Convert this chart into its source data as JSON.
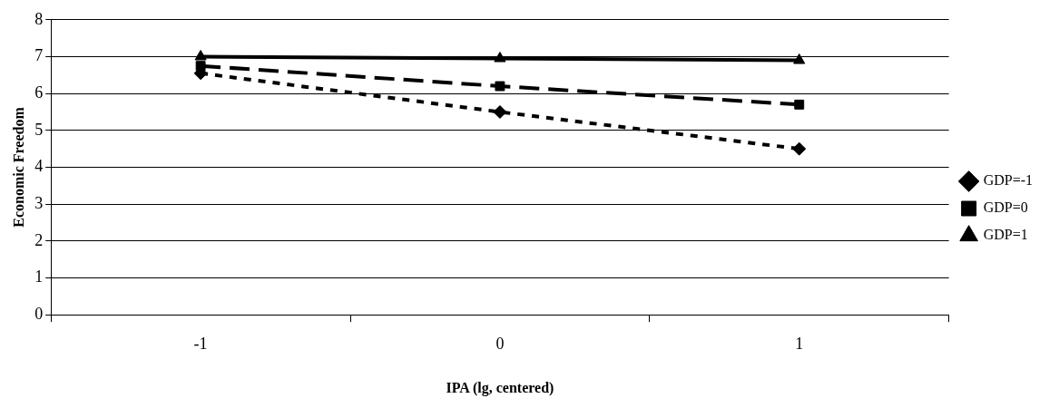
{
  "chart_data": {
    "type": "line",
    "xlabel": "IPA (lg, centered)",
    "ylabel": "Economic Freedom",
    "categories": [
      "-1",
      "0",
      "1"
    ],
    "ylim": [
      0,
      8
    ],
    "yticks": [
      0,
      1,
      2,
      3,
      4,
      5,
      6,
      7,
      8
    ],
    "grid": "y",
    "legend": "right",
    "series": [
      {
        "name": "GDP=-1",
        "color": "#000000",
        "values": [
          6.55,
          5.5,
          4.5
        ],
        "marker": "diamond",
        "line_style": "dotted"
      },
      {
        "name": "GDP=0",
        "color": "#000000",
        "values": [
          6.75,
          6.2,
          5.7
        ],
        "marker": "square",
        "line_style": "dashed"
      },
      {
        "name": "GDP=1",
        "color": "#000000",
        "values": [
          7.0,
          6.95,
          6.9
        ],
        "marker": "triangle",
        "line_style": "solid"
      }
    ]
  }
}
